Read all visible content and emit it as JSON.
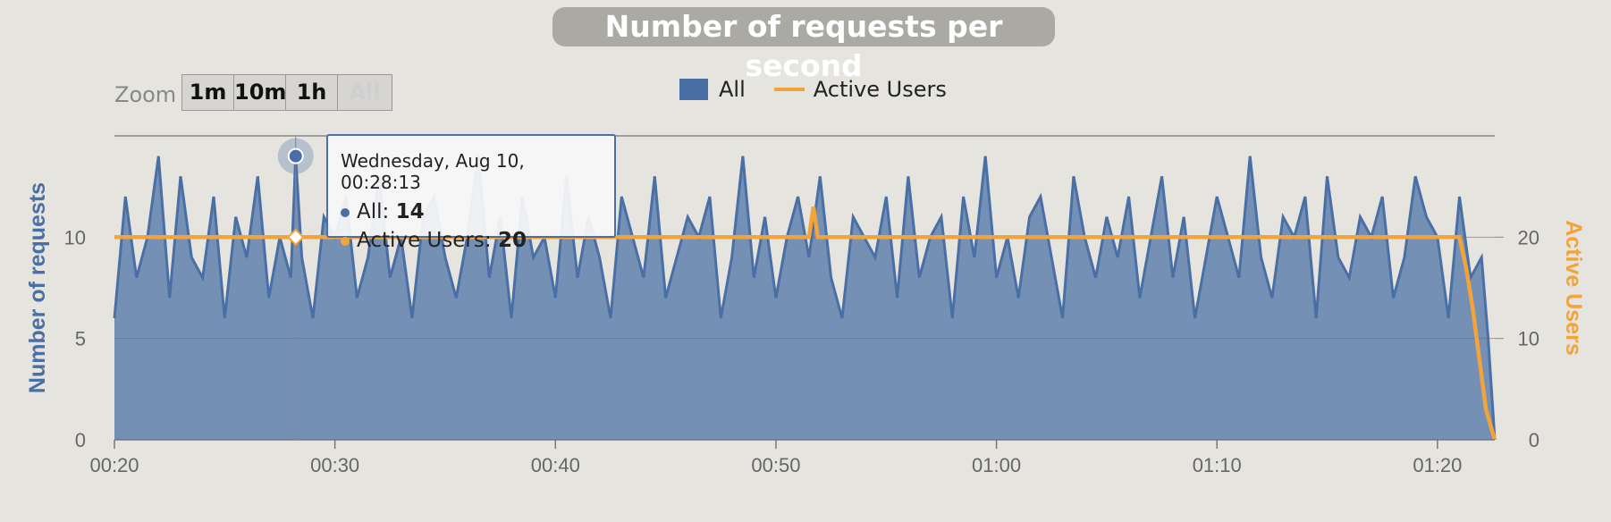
{
  "title": "Number of requests per second",
  "zoom": {
    "label": "Zoom",
    "buttons": [
      "1m",
      "10m",
      "1h",
      "All"
    ]
  },
  "legend": [
    {
      "name": "All",
      "color": "#4a6fa5"
    },
    {
      "name": "Active Users",
      "color": "#f2a33a"
    }
  ],
  "tooltip": {
    "date": "Wednesday, Aug 10, 00:28:13",
    "series": [
      {
        "name": "All",
        "value": "14",
        "color": "#4a6fa5"
      },
      {
        "name": "Active Users",
        "value": "20",
        "color": "#f2a33a"
      }
    ]
  },
  "chart_data": {
    "type": "area",
    "title": "Number of requests per second",
    "xlabel": "",
    "x_tick_labels": [
      "00:20",
      "00:30",
      "00:40",
      "00:50",
      "01:00",
      "01:10",
      "01:20"
    ],
    "x_tick_minutes": [
      20,
      30,
      40,
      50,
      60,
      70,
      80
    ],
    "xlim_minutes": [
      20,
      82.6
    ],
    "y_left": {
      "label": "Number of requests",
      "ticks": [
        "0",
        "5",
        "10"
      ],
      "lim": [
        0,
        15
      ],
      "color": "#4a6fa5"
    },
    "y_right": {
      "label": "Active Users",
      "ticks": [
        "0",
        "10",
        "20"
      ],
      "lim": [
        0,
        30
      ],
      "color": "#f2a33a"
    },
    "series": [
      {
        "name": "All",
        "type": "area",
        "axis": "left",
        "color": "#4a6fa5",
        "x_minutes": [
          20,
          20.5,
          21,
          21.5,
          22,
          22.5,
          23,
          23.5,
          24,
          24.5,
          25,
          25.5,
          26,
          26.5,
          27,
          27.5,
          28,
          28.22,
          28.5,
          29,
          29.5,
          30,
          30.5,
          31,
          31.5,
          32,
          32.5,
          33,
          33.5,
          34,
          34.5,
          35,
          35.5,
          36,
          36.5,
          37,
          37.5,
          38,
          38.5,
          39,
          39.5,
          40,
          40.5,
          41,
          41.5,
          42,
          42.5,
          43,
          43.5,
          44,
          44.5,
          45,
          45.5,
          46,
          46.5,
          47,
          47.5,
          48,
          48.5,
          49,
          49.5,
          50,
          50.5,
          51,
          51.5,
          52,
          52.5,
          53,
          53.5,
          54,
          54.5,
          55,
          55.5,
          56,
          56.5,
          57,
          57.5,
          58,
          58.5,
          59,
          59.5,
          60,
          60.5,
          61,
          61.5,
          62,
          62.5,
          63,
          63.5,
          64,
          64.5,
          65,
          65.5,
          66,
          66.5,
          67,
          67.5,
          68,
          68.5,
          69,
          69.5,
          70,
          70.5,
          71,
          71.5,
          72,
          72.5,
          73,
          73.5,
          74,
          74.5,
          75,
          75.5,
          76,
          76.5,
          77,
          77.5,
          78,
          78.5,
          79,
          79.5,
          80,
          80.5,
          81,
          81.5,
          82,
          82.3,
          82.6
        ],
        "values": [
          6,
          12,
          8,
          10,
          14,
          7,
          13,
          9,
          8,
          12,
          6,
          11,
          9,
          13,
          7,
          10,
          8,
          14,
          9,
          6,
          11,
          10,
          12,
          7,
          9,
          13,
          8,
          10,
          6,
          11,
          12,
          9,
          7,
          10,
          14,
          8,
          11,
          6,
          12,
          9,
          10,
          7,
          13,
          8,
          11,
          9,
          6,
          12,
          10,
          8,
          13,
          7,
          9,
          11,
          10,
          12,
          6,
          9,
          14,
          8,
          11,
          7,
          10,
          12,
          9,
          13,
          8,
          6,
          11,
          10,
          9,
          12,
          7,
          13,
          8,
          10,
          11,
          6,
          12,
          9,
          14,
          8,
          10,
          7,
          11,
          12,
          9,
          6,
          13,
          10,
          8,
          11,
          9,
          12,
          7,
          10,
          13,
          8,
          11,
          6,
          9,
          12,
          10,
          8,
          14,
          9,
          7,
          11,
          10,
          12,
          6,
          13,
          9,
          8,
          11,
          10,
          12,
          7,
          9,
          13,
          11,
          10,
          6,
          12,
          8,
          9,
          5,
          0
        ]
      },
      {
        "name": "Active Users",
        "type": "line",
        "axis": "right",
        "color": "#f2a33a",
        "x_minutes": [
          20,
          30,
          40,
          50,
          51.5,
          51.7,
          51.9,
          60,
          70,
          81,
          81.3,
          81.6,
          81.9,
          82.2,
          82.6
        ],
        "values": [
          20,
          20,
          20,
          20,
          20,
          23,
          20,
          20,
          20,
          20,
          17,
          13,
          8,
          3,
          0
        ]
      }
    ],
    "grid": true,
    "legend": "top-center",
    "highlight": {
      "x_label": "00:28:13",
      "x_minutes": 28.22,
      "All": 14,
      "Active Users": 20
    }
  }
}
